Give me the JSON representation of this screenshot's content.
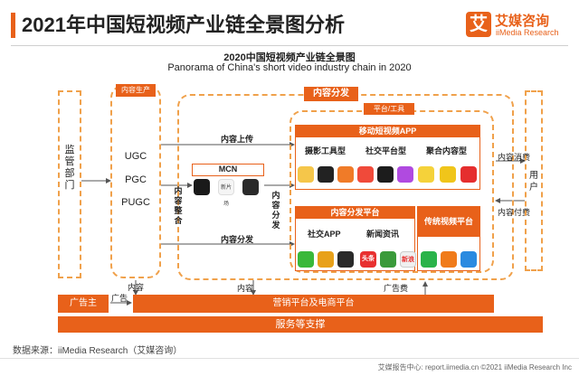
{
  "header": {
    "title": "2021年中国短视频产业链全景图分析",
    "logo_mark": "艾",
    "logo_cn": "艾媒咨询",
    "logo_en": "iiMedia Research"
  },
  "diagram": {
    "title_cn": "2020中国短视频产业链全景图",
    "title_en": "Panorama of China's short video industry chain in 2020",
    "regulator": "监管部门",
    "regulate_label": "内容监管",
    "content_production": {
      "header": "内容生产",
      "items": [
        "UGC",
        "PGC",
        "PUGC"
      ]
    },
    "content_distribution": "内容分发",
    "platform_tools": "平台/工具",
    "mobile_app": {
      "header": "移动短视频APP",
      "types": [
        "摄影工具型",
        "社交平台型",
        "聚合内容型"
      ]
    },
    "distribution_platform": {
      "header": "内容分发平台",
      "types": [
        "社交APP",
        "新闻资讯"
      ]
    },
    "traditional_platform": "传统视频平台",
    "mcn": "MCN",
    "mcn_icon_texts": [
      "新片场"
    ],
    "app_icon_texts": [
      "头条",
      "新浪"
    ],
    "labels": {
      "upload": "内容上传",
      "integration": "内容整合",
      "distribution_v": "内容分发",
      "distribution_h": "内容分发",
      "consumption": "内容消费",
      "payment": "内容付费",
      "content_left": "内容",
      "content_mid": "内容",
      "ad": "广告",
      "ad_fee": "广告费"
    },
    "user": "用户",
    "advertiser": "广告主",
    "marketing": "营销平台及电商平台",
    "support": "服务等支撑"
  },
  "footer": {
    "source": "数据来源：iiMedia Research（艾媒咨询）",
    "bottom_right": "艾媒报告中心: report.iimedia.cn  ©2021  iiMedia Research  Inc"
  },
  "colors": {
    "accent": "#e8611a",
    "dashed": "#f0a14b"
  }
}
